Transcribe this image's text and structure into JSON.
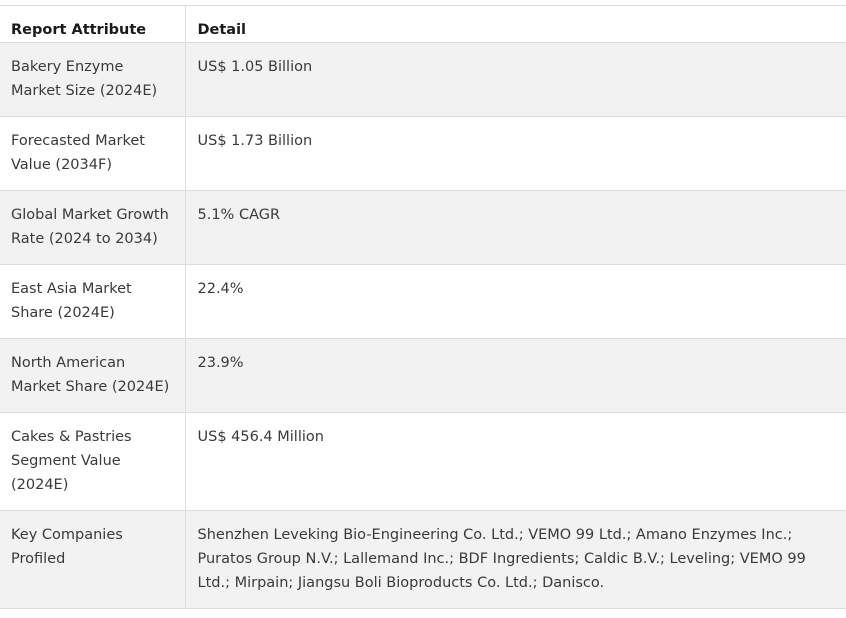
{
  "table": {
    "headers": [
      "Report Attribute",
      "Detail"
    ],
    "rows": [
      {
        "attribute": "Bakery Enzyme Market Size (2024E)",
        "detail": "US$ 1.05 Billion"
      },
      {
        "attribute": "Forecasted Market Value (2034F)",
        "detail": "US$ 1.73 Billion"
      },
      {
        "attribute": "Global Market Growth Rate (2024 to 2034)",
        "detail": "5.1% CAGR"
      },
      {
        "attribute": "East Asia Market Share (2024E)",
        "detail": "22.4%"
      },
      {
        "attribute": "North American Market Share (2024E)",
        "detail": "23.9%"
      },
      {
        "attribute": "Cakes & Pastries Segment Value (2024E)",
        "detail": "US$ 456.4 Million"
      },
      {
        "attribute": "Key Companies Profiled",
        "detail": "Shenzhen Leveking Bio-Engineering Co. Ltd.; VEMO 99 Ltd.; Amano Enzymes Inc.; Puratos Group N.V.; Lallemand Inc.; BDF Ingredients; Caldic B.V.; Leveling; VEMO 99 Ltd.; Mirpain; Jiangsu Boli Bioproducts Co. Ltd.; Danisco."
      }
    ]
  }
}
